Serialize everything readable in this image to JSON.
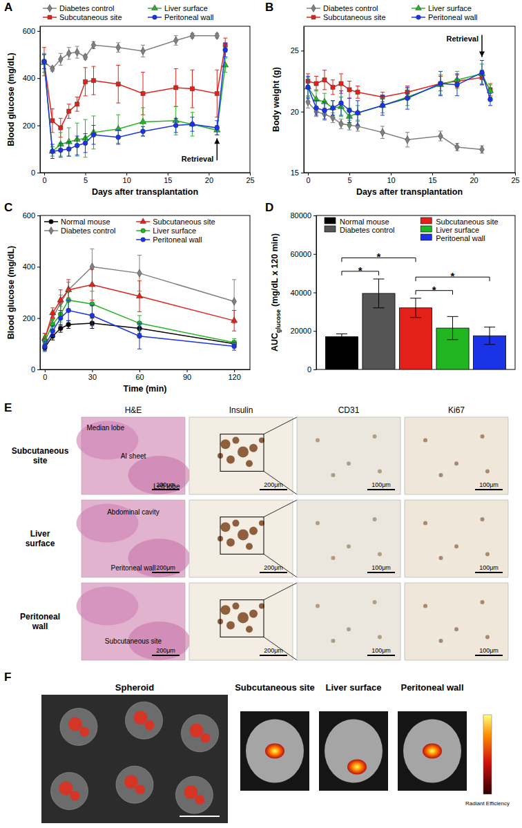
{
  "chart_data": [
    {
      "type": "line",
      "panel": "A",
      "xlabel": "Days after transplantation",
      "ylabel": "Blood glucose (mg/dL)",
      "x": [
        0,
        1,
        2,
        3,
        4,
        5,
        6,
        9,
        12,
        16,
        18,
        21,
        22
      ],
      "xlim": [
        -0.5,
        25
      ],
      "xticks": [
        0,
        5,
        10,
        15,
        20,
        25
      ],
      "ylim": [
        0,
        620
      ],
      "yticks": [
        0,
        200,
        400,
        600
      ],
      "legend": "top",
      "annotations": [
        {
          "text": "Retrieval",
          "x": 21
        }
      ],
      "series": [
        {
          "name": "Diabetes control",
          "color": "#808080",
          "marker": "diamond",
          "values": [
            470,
            440,
            480,
            505,
            510,
            490,
            540,
            530,
            515,
            560,
            580,
            580,
            null
          ],
          "errors": [
            30,
            10,
            25,
            25,
            25,
            10,
            15,
            20,
            25,
            20,
            10,
            10,
            null
          ]
        },
        {
          "name": "Subcutaneous site",
          "color": "#e32119",
          "marker": "square",
          "values": [
            470,
            220,
            190,
            260,
            290,
            385,
            390,
            375,
            335,
            360,
            355,
            335,
            540
          ],
          "errors": [
            60,
            50,
            40,
            30,
            30,
            60,
            60,
            80,
            90,
            80,
            80,
            100,
            30
          ]
        },
        {
          "name": "Liver surface",
          "color": "#22b522",
          "marker": "triangle",
          "values": [
            465,
            90,
            120,
            130,
            140,
            145,
            170,
            185,
            215,
            220,
            205,
            180,
            455
          ],
          "errors": [
            40,
            20,
            50,
            60,
            70,
            80,
            70,
            60,
            60,
            60,
            50,
            20,
            30
          ]
        },
        {
          "name": "Peritoneal wall",
          "color": "#1a33e6",
          "marker": "circle",
          "values": [
            470,
            90,
            95,
            100,
            115,
            125,
            160,
            150,
            175,
            200,
            205,
            190,
            520
          ],
          "errors": [
            30,
            30,
            30,
            30,
            40,
            40,
            40,
            30,
            20,
            30,
            30,
            30,
            30
          ]
        }
      ]
    },
    {
      "type": "line",
      "panel": "B",
      "xlabel": "Days after transplantation",
      "ylabel": "Body weight (g)",
      "x": [
        0,
        1,
        2,
        3,
        4,
        5,
        6,
        9,
        12,
        16,
        18,
        21,
        22
      ],
      "xlim": [
        -0.5,
        25
      ],
      "xticks": [
        0,
        5,
        10,
        15,
        20,
        25
      ],
      "ylim": [
        15,
        27
      ],
      "yticks": [
        15,
        20,
        25
      ],
      "legend": "top",
      "annotations": [
        {
          "text": "Retrieval",
          "x": 21
        }
      ],
      "series": [
        {
          "name": "Diabetes control",
          "color": "#808080",
          "marker": "diamond",
          "values": [
            20.8,
            20.0,
            19.8,
            19.5,
            19.0,
            18.9,
            18.8,
            18.3,
            17.7,
            18.0,
            17.1,
            16.9,
            null
          ],
          "errors": [
            0.5,
            0.4,
            0.5,
            0.4,
            0.4,
            0.4,
            0.4,
            0.5,
            0.6,
            0.4,
            0.3,
            0.3,
            null
          ]
        },
        {
          "name": "Subcutaneous site",
          "color": "#e32119",
          "marker": "square",
          "values": [
            22.5,
            22.3,
            22.6,
            22.0,
            22.3,
            21.8,
            21.6,
            21.2,
            21.6,
            22.3,
            22.5,
            22.8,
            21.8
          ],
          "errors": [
            0.6,
            0.6,
            0.8,
            0.6,
            0.8,
            0.7,
            0.5,
            0.4,
            0.5,
            0.6,
            0.5,
            0.6,
            0.5
          ]
        },
        {
          "name": "Liver surface",
          "color": "#22b522",
          "marker": "triangle",
          "values": [
            22.0,
            21.0,
            20.8,
            20.3,
            20.4,
            19.6,
            19.9,
            20.5,
            21.2,
            22.2,
            22.6,
            23.1,
            21.7
          ],
          "errors": [
            0.8,
            0.8,
            0.7,
            0.6,
            0.8,
            0.7,
            0.6,
            0.6,
            0.7,
            0.8,
            0.7,
            0.8,
            0.5
          ]
        },
        {
          "name": "Peritoneal wall",
          "color": "#1a33e6",
          "marker": "circle",
          "values": [
            22.0,
            20.3,
            20.1,
            20.3,
            20.7,
            20.1,
            19.9,
            20.5,
            21.1,
            22.3,
            22.2,
            23.2,
            21.0
          ],
          "errors": [
            0.9,
            0.6,
            0.7,
            0.6,
            1.0,
            1.0,
            1.0,
            0.8,
            0.9,
            1.0,
            0.9,
            1.0,
            0.5
          ]
        }
      ]
    },
    {
      "type": "line",
      "panel": "C",
      "xlabel": "Time (min)",
      "ylabel": "Blood glucose (mg/dL)",
      "x": [
        0,
        5,
        10,
        15,
        30,
        60,
        120
      ],
      "xlim": [
        -3,
        130
      ],
      "xticks": [
        0,
        30,
        60,
        90,
        120
      ],
      "ylim": [
        0,
        600
      ],
      "yticks": [
        0,
        200,
        400,
        600
      ],
      "legend": "upper left",
      "series": [
        {
          "name": "Normal mouse",
          "color": "#000000",
          "marker": "circle",
          "values": [
            85,
            130,
            160,
            175,
            180,
            160,
            100
          ],
          "errors": [
            10,
            15,
            15,
            15,
            20,
            20,
            10
          ]
        },
        {
          "name": "Diabetes control",
          "color": "#808080",
          "marker": "diamond",
          "values": [
            120,
            200,
            260,
            310,
            400,
            375,
            265
          ],
          "errors": [
            20,
            20,
            30,
            30,
            70,
            70,
            85
          ]
        },
        {
          "name": "Subcutaneous site",
          "color": "#e32119",
          "marker": "triangle",
          "values": [
            120,
            220,
            270,
            310,
            330,
            285,
            190
          ],
          "errors": [
            20,
            20,
            40,
            40,
            60,
            60,
            40
          ]
        },
        {
          "name": "Liver surface",
          "color": "#22b522",
          "marker": "circle",
          "values": [
            110,
            175,
            215,
            270,
            255,
            180,
            105
          ],
          "errors": [
            20,
            20,
            30,
            40,
            50,
            30,
            15
          ]
        },
        {
          "name": "Peritoneal wall",
          "color": "#1a33e6",
          "marker": "circle",
          "values": [
            90,
            150,
            200,
            230,
            210,
            130,
            90
          ],
          "errors": [
            20,
            20,
            30,
            40,
            40,
            50,
            15
          ]
        }
      ]
    },
    {
      "type": "bar",
      "panel": "D",
      "ylabel": "AUC",
      "ylabel_subscript": "glucose",
      "ylabel_units": "(mg/dL x 120 min)",
      "categories": [
        "Normal mouse",
        "Diabetes control",
        "Subcutaneous site",
        "Liver surface",
        "Peritoenal wall"
      ],
      "values": [
        17000,
        39500,
        32000,
        21500,
        17500
      ],
      "errors": [
        1500,
        7500,
        5000,
        6000,
        4500
      ],
      "colors": [
        "#000000",
        "#555555",
        "#e32119",
        "#22b522",
        "#1a33e6"
      ],
      "ylim": [
        0,
        80000
      ],
      "yticks": [
        0,
        20000,
        40000,
        60000,
        80000
      ],
      "tick_labels": "y",
      "legend": "upper left",
      "annotations": [
        {
          "text": "*",
          "from": 0,
          "to": 1
        },
        {
          "text": "*",
          "from": 0,
          "to": 2
        },
        {
          "text": "*",
          "from": 2,
          "to": 3
        },
        {
          "text": "*",
          "from": 2,
          "to": 4
        }
      ]
    }
  ],
  "figure_panels": {
    "E": {
      "panel": "E",
      "columns": [
        "H&E",
        "Insulin",
        "CD31",
        "Ki67"
      ],
      "rows": [
        {
          "label": "Subcutaneous site",
          "tissue_labels": [
            "Median lobe",
            "AI sheet",
            "Left lobe"
          ]
        },
        {
          "label": "Liver surface",
          "tissue_labels": [
            "Abdominal cavity",
            "Peritoneal wall"
          ]
        },
        {
          "label": "Peritoneal wall",
          "tissue_labels": [
            "Subcutaneous site"
          ]
        }
      ],
      "scale_bars": [
        "200μm",
        "200μm",
        "100μm",
        "100μm"
      ]
    },
    "F": {
      "panel": "F",
      "images": [
        "Spheroid",
        "Subcutaneous site",
        "Liver surface",
        "Peritoneal wall"
      ],
      "colorbar_label": "Radiant Efficiency"
    }
  }
}
